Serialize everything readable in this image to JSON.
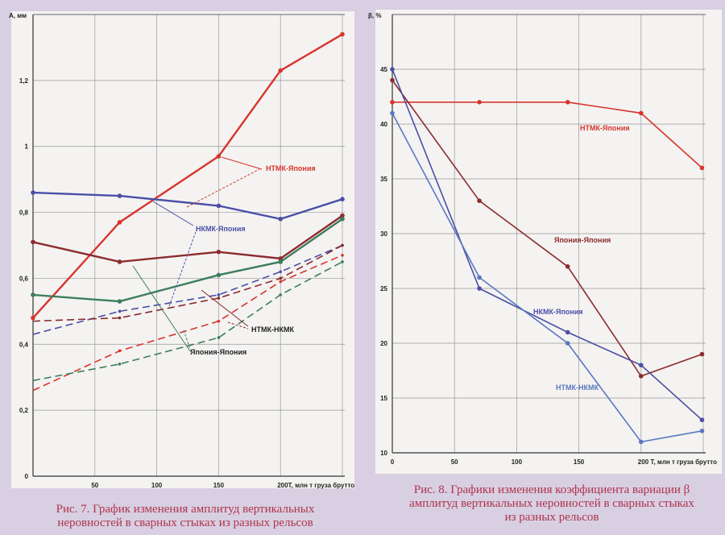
{
  "colors": {
    "ntmk_japan": "#d8342c",
    "japan_japan": "#8c2b2e",
    "nkmk_japan": "#4a4fa6",
    "ntmk_nkmk": "#3f7d5c",
    "ntmk_nkmk_right": "#5a78c0"
  },
  "captions": {
    "fig7_line1": "Рис. 7. График изменения амплитуд вертикальных",
    "fig7_line2": "неровностей в сварных стыках из разных рельсов",
    "fig8_line1": "Рис. 8. Графики изменения коэффициента вариации β",
    "fig8_line2": "амплитуд вертикальных неровностей в сварных стыках",
    "fig8_line3": "из разных рельсов"
  },
  "chart_data": [
    {
      "type": "line",
      "title": "Рис. 7",
      "ylabel": "А, мм",
      "xlabel": "Т, млн т груза брутто",
      "xlim": [
        0,
        250
      ],
      "ylim": [
        0,
        1.4
      ],
      "xticks": [
        50,
        100,
        150,
        200
      ],
      "xtick_labels": [
        "50",
        "100",
        "150",
        "200Т, млн т груза брутто"
      ],
      "yticks": [
        0,
        0.2,
        0.4,
        0.6,
        0.8,
        1,
        1.2
      ],
      "ytick_labels": [
        "0",
        "0,2",
        "0,4",
        "0,6",
        "0,8",
        "1",
        "1,2"
      ],
      "grid": true,
      "x": [
        0,
        70,
        150,
        200,
        250
      ],
      "series": [
        {
          "name": "НТМК-Япония",
          "color_key": "ntmk_japan",
          "style": "solid",
          "values": [
            0.48,
            0.77,
            0.97,
            1.23,
            1.34
          ]
        },
        {
          "name": "НКМК-Япония",
          "color_key": "nkmk_japan",
          "style": "solid",
          "values": [
            0.86,
            0.85,
            0.82,
            0.78,
            0.84
          ]
        },
        {
          "name": "Япония-Япония",
          "color_key": "japan_japan",
          "style": "solid",
          "values": [
            0.71,
            0.65,
            0.68,
            0.66,
            0.79
          ]
        },
        {
          "name": "НТМК-НКМК",
          "color_key": "ntmk_nkmk",
          "style": "solid",
          "values": [
            0.55,
            0.53,
            0.61,
            0.65,
            0.78
          ]
        },
        {
          "name": "НКМК-Япония (пунктир)",
          "color_key": "nkmk_japan",
          "style": "dashed",
          "values": [
            0.43,
            0.5,
            0.55,
            0.62,
            0.7
          ]
        },
        {
          "name": "Япония-Япония (пунктир)",
          "color_key": "japan_japan",
          "style": "dashed",
          "values": [
            0.47,
            0.48,
            0.54,
            0.6,
            0.7
          ]
        },
        {
          "name": "НТМК-Япония (пунктир)",
          "color_key": "ntmk_japan",
          "style": "dashed",
          "values": [
            0.26,
            0.38,
            0.47,
            0.59,
            0.67
          ]
        },
        {
          "name": "НТМК-НКМК (пунктир)",
          "color_key": "ntmk_nkmk",
          "style": "dashed",
          "values": [
            0.29,
            0.34,
            0.42,
            0.55,
            0.65
          ]
        }
      ],
      "annotations": [
        "НТМК-Япония",
        "НКМК-Япония",
        "НТМК-НКМК",
        "Япония-Япония"
      ]
    },
    {
      "type": "line",
      "title": "Рис. 8",
      "ylabel": "β, %",
      "xlabel": "Т, млн т груза брутто",
      "xlim": [
        0,
        250
      ],
      "ylim": [
        10,
        50
      ],
      "xticks": [
        0,
        50,
        100,
        150,
        200
      ],
      "xtick_labels": [
        "0",
        "50",
        "100",
        "150",
        "200 Т, млн т груза брутто"
      ],
      "yticks": [
        10,
        15,
        20,
        25,
        30,
        35,
        40,
        45
      ],
      "ytick_labels": [
        "10",
        "15",
        "20",
        "25",
        "30",
        "35",
        "40",
        "45"
      ],
      "grid": true,
      "x": [
        0,
        70,
        141,
        200,
        249
      ],
      "series": [
        {
          "name": "НТМК-Япония",
          "color_key": "ntmk_japan",
          "style": "solid",
          "values": [
            42,
            42,
            42,
            41,
            36
          ]
        },
        {
          "name": "Япония-Япония",
          "color_key": "japan_japan",
          "style": "solid",
          "values": [
            44,
            33,
            27,
            17,
            19
          ]
        },
        {
          "name": "НКМК-Япония",
          "color_key": "nkmk_japan",
          "style": "solid",
          "values": [
            45,
            25,
            21,
            18,
            13
          ]
        },
        {
          "name": "НТМК-НКМК",
          "color_key": "ntmk_nkmk_right",
          "style": "solid",
          "values": [
            41,
            26,
            20,
            11,
            12
          ]
        }
      ],
      "annotations": [
        "НТМК-Япония",
        "Япония-Япония",
        "НКМК-Япония",
        "НТМК-НКМК"
      ]
    }
  ]
}
